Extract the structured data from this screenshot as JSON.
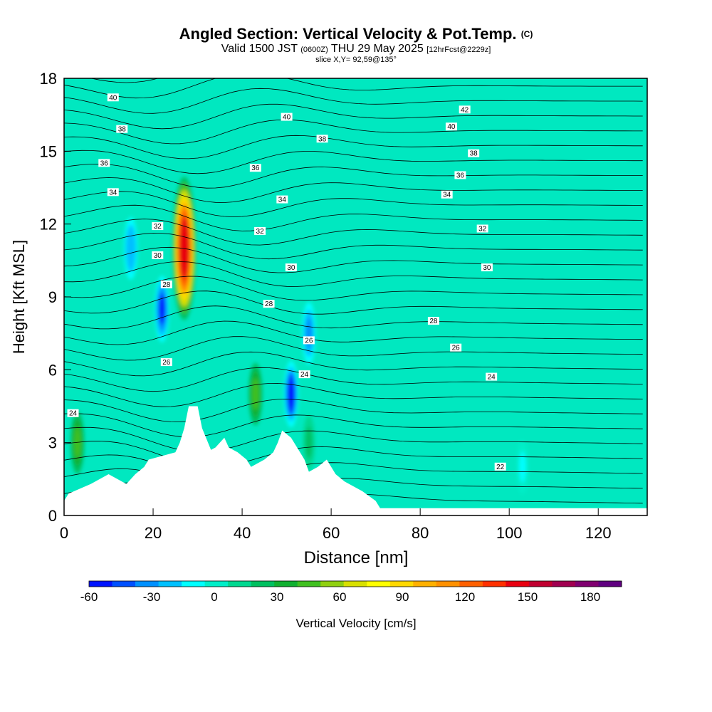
{
  "title": {
    "main": "Angled Section: Vertical Velocity & Pot.Temp.",
    "copyright": "(C)",
    "valid_a": "Valid 1500 JST",
    "valid_z": "(0600Z)",
    "valid_b": "THU 29 May 2025",
    "fcst": "[12hrFcst@2229z]",
    "slice": "slice X,Y= 92,59@135°"
  },
  "colorbar_label": "Vertical Velocity [cm/s]",
  "colorbar_ticks": [
    "-60",
    "-30",
    "0",
    "30",
    "60",
    "90",
    "120",
    "150",
    "180"
  ],
  "colorbar_colors": [
    "#0014ff",
    "#0050ff",
    "#0090ff",
    "#00c0ff",
    "#00ffff",
    "#00eec8",
    "#00d890",
    "#00c060",
    "#10b030",
    "#40c020",
    "#90d010",
    "#d8e000",
    "#ffff00",
    "#ffd800",
    "#ffb000",
    "#ff9000",
    "#ff6000",
    "#ff3000",
    "#e80010",
    "#c00030",
    "#a00050",
    "#800070",
    "#600080"
  ],
  "chart_data": {
    "type": "heatmap",
    "xlabel": "Distance [nm]",
    "ylabel": "Height [Kft MSL]",
    "xlim": [
      0,
      131
    ],
    "ylim": [
      0,
      18
    ],
    "xticks": [
      "0",
      "20",
      "40",
      "60",
      "80",
      "100",
      "120"
    ],
    "yticks": [
      "0",
      "3",
      "6",
      "9",
      "12",
      "15",
      "18"
    ],
    "background_value_cm_s": 3,
    "vertical_velocity_features": [
      {
        "kind": "updraft",
        "x": 27,
        "y": 11,
        "peak": 150
      },
      {
        "kind": "downdraft",
        "x": 22,
        "y": 8.5,
        "peak": -55
      },
      {
        "kind": "downdraft",
        "x": 51,
        "y": 5,
        "peak": -60
      },
      {
        "kind": "downdraft",
        "x": 55,
        "y": 7.5,
        "peak": -40
      },
      {
        "kind": "downdraft",
        "x": 15,
        "y": 11,
        "peak": -30
      },
      {
        "kind": "updraft",
        "x": 3,
        "y": 3,
        "peak": 45
      },
      {
        "kind": "updraft",
        "x": 43,
        "y": 5,
        "peak": 45
      },
      {
        "kind": "updraft",
        "x": 55,
        "y": 3,
        "peak": 25
      },
      {
        "kind": "downdraft",
        "x": 103,
        "y": 2,
        "peak": -15
      }
    ],
    "potential_temperature_labels": [
      {
        "value": "40",
        "x": 11,
        "y": 17.2
      },
      {
        "value": "40",
        "x": 50,
        "y": 16.4
      },
      {
        "value": "42",
        "x": 90,
        "y": 16.7
      },
      {
        "value": "40",
        "x": 87,
        "y": 16
      },
      {
        "value": "38",
        "x": 13,
        "y": 15.9
      },
      {
        "value": "38",
        "x": 58,
        "y": 15.5
      },
      {
        "value": "38",
        "x": 92,
        "y": 14.9
      },
      {
        "value": "36",
        "x": 9,
        "y": 14.5
      },
      {
        "value": "36",
        "x": 43,
        "y": 14.3
      },
      {
        "value": "36",
        "x": 89,
        "y": 14
      },
      {
        "value": "34",
        "x": 11,
        "y": 13.3
      },
      {
        "value": "34",
        "x": 49,
        "y": 13
      },
      {
        "value": "34",
        "x": 86,
        "y": 13.2
      },
      {
        "value": "32",
        "x": 21,
        "y": 11.9
      },
      {
        "value": "32",
        "x": 44,
        "y": 11.7
      },
      {
        "value": "32",
        "x": 94,
        "y": 11.8
      },
      {
        "value": "30",
        "x": 21,
        "y": 10.7
      },
      {
        "value": "30",
        "x": 51,
        "y": 10.2
      },
      {
        "value": "30",
        "x": 95,
        "y": 10.2
      },
      {
        "value": "28",
        "x": 23,
        "y": 9.5
      },
      {
        "value": "28",
        "x": 46,
        "y": 8.7
      },
      {
        "value": "28",
        "x": 83,
        "y": 8
      },
      {
        "value": "26",
        "x": 55,
        "y": 7.2
      },
      {
        "value": "26",
        "x": 88,
        "y": 6.9
      },
      {
        "value": "26",
        "x": 23,
        "y": 6.3
      },
      {
        "value": "24",
        "x": 54,
        "y": 5.8
      },
      {
        "value": "24",
        "x": 96,
        "y": 5.7
      },
      {
        "value": "24",
        "x": 2,
        "y": 4.2
      },
      {
        "value": "22",
        "x": 98,
        "y": 2
      }
    ],
    "terrain_profile": [
      [
        0,
        0.6
      ],
      [
        1,
        0.9
      ],
      [
        6,
        1.3
      ],
      [
        10,
        1.7
      ],
      [
        14,
        1.3
      ],
      [
        16,
        1.7
      ],
      [
        18,
        2
      ],
      [
        19,
        2.3
      ],
      [
        25,
        2.6
      ],
      [
        26,
        3
      ],
      [
        27,
        3.6
      ],
      [
        28,
        4.5
      ],
      [
        30,
        4.5
      ],
      [
        31,
        3.6
      ],
      [
        33,
        2.7
      ],
      [
        34,
        2.8
      ],
      [
        36,
        3.2
      ],
      [
        37,
        2.8
      ],
      [
        39,
        2.6
      ],
      [
        41,
        2.3
      ],
      [
        42,
        2
      ],
      [
        45,
        2.3
      ],
      [
        47,
        2.6
      ],
      [
        48,
        3
      ],
      [
        49,
        3.5
      ],
      [
        51,
        3.2
      ],
      [
        53,
        2.6
      ],
      [
        54,
        2.3
      ],
      [
        55,
        1.8
      ],
      [
        57,
        2
      ],
      [
        59,
        2.3
      ],
      [
        61,
        1.7
      ],
      [
        63,
        1.4
      ],
      [
        67,
        1
      ],
      [
        70,
        0.6
      ],
      [
        71,
        0.3
      ],
      [
        131,
        0.3
      ]
    ]
  }
}
